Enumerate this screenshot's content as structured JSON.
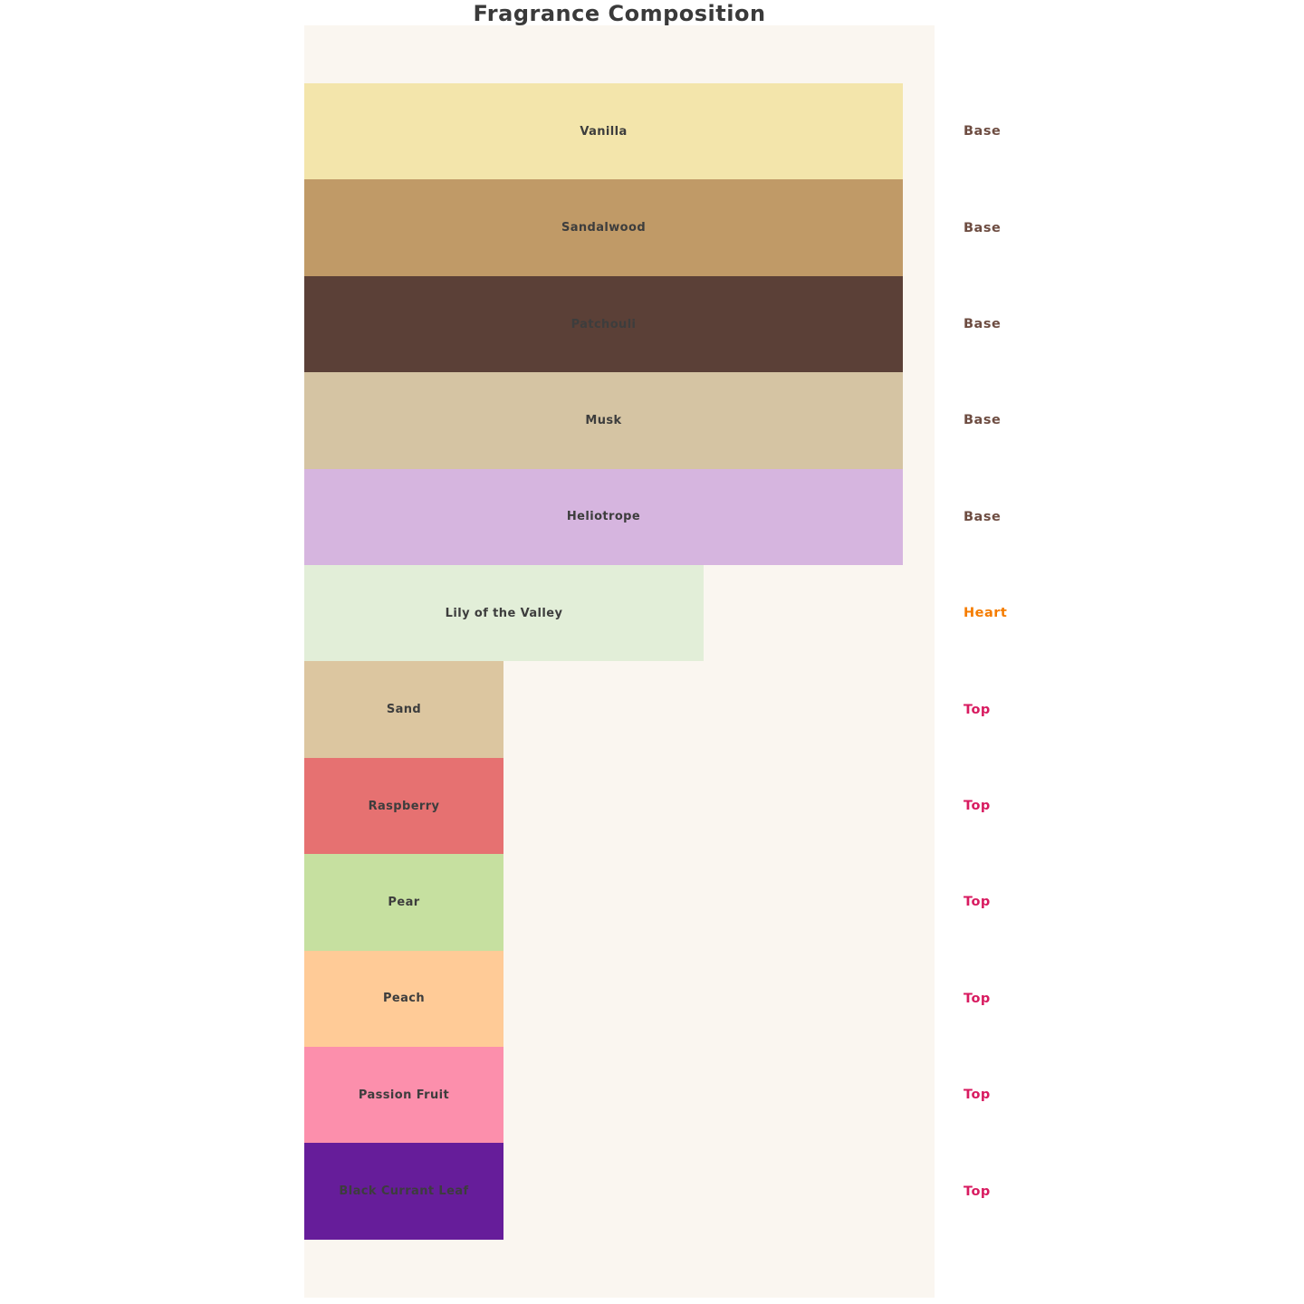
{
  "title": "Fragrance Composition",
  "colors": {
    "page_background": "#ffffff",
    "panel_background": "#faf6f0",
    "title_text": "#3a3a3a",
    "bar_label_text": "#3d3d3d",
    "type_base": "#6d4c41",
    "type_heart": "#f57c00",
    "type_top": "#d81b60"
  },
  "chart_data": {
    "type": "bar",
    "orientation": "horizontal",
    "title": "Fragrance Composition",
    "grid": false,
    "legend_position": "right-of-bars",
    "value_range": [
      0,
      3
    ],
    "max_value": 3,
    "categories": [
      "Vanilla",
      "Sandalwood",
      "Patchouli",
      "Musk",
      "Heliotrope",
      "Lily of the Valley",
      "Sand",
      "Raspberry",
      "Pear",
      "Peach",
      "Passion Fruit",
      "Black Currant Leaf"
    ],
    "values": [
      3,
      3,
      3,
      3,
      3,
      2,
      1,
      1,
      1,
      1,
      1,
      1
    ],
    "notes": [
      {
        "label": "Vanilla",
        "type": "Base",
        "value": 3,
        "color": "#f3e5ab"
      },
      {
        "label": "Sandalwood",
        "type": "Base",
        "value": 3,
        "color": "#c09a67"
      },
      {
        "label": "Patchouli",
        "type": "Base",
        "value": 3,
        "color": "#5b4037"
      },
      {
        "label": "Musk",
        "type": "Base",
        "value": 3,
        "color": "#d5c4a3"
      },
      {
        "label": "Heliotrope",
        "type": "Base",
        "value": 3,
        "color": "#d6b5df"
      },
      {
        "label": "Lily of the Valley",
        "type": "Heart",
        "value": 2,
        "color": "#e2eed8"
      },
      {
        "label": "Sand",
        "type": "Top",
        "value": 1,
        "color": "#dcc6a0"
      },
      {
        "label": "Raspberry",
        "type": "Top",
        "value": 1,
        "color": "#e67171"
      },
      {
        "label": "Pear",
        "type": "Top",
        "value": 1,
        "color": "#c6e0a0"
      },
      {
        "label": "Peach",
        "type": "Top",
        "value": 1,
        "color": "#ffcb97"
      },
      {
        "label": "Passion Fruit",
        "type": "Top",
        "value": 1,
        "color": "#fc8fac"
      },
      {
        "label": "Black Currant Leaf",
        "type": "Top",
        "value": 1,
        "color": "#661d9a"
      }
    ],
    "note_type_labels": [
      "Base",
      "Base",
      "Base",
      "Base",
      "Base",
      "Heart",
      "Top",
      "Top",
      "Top",
      "Top",
      "Top",
      "Top"
    ]
  }
}
